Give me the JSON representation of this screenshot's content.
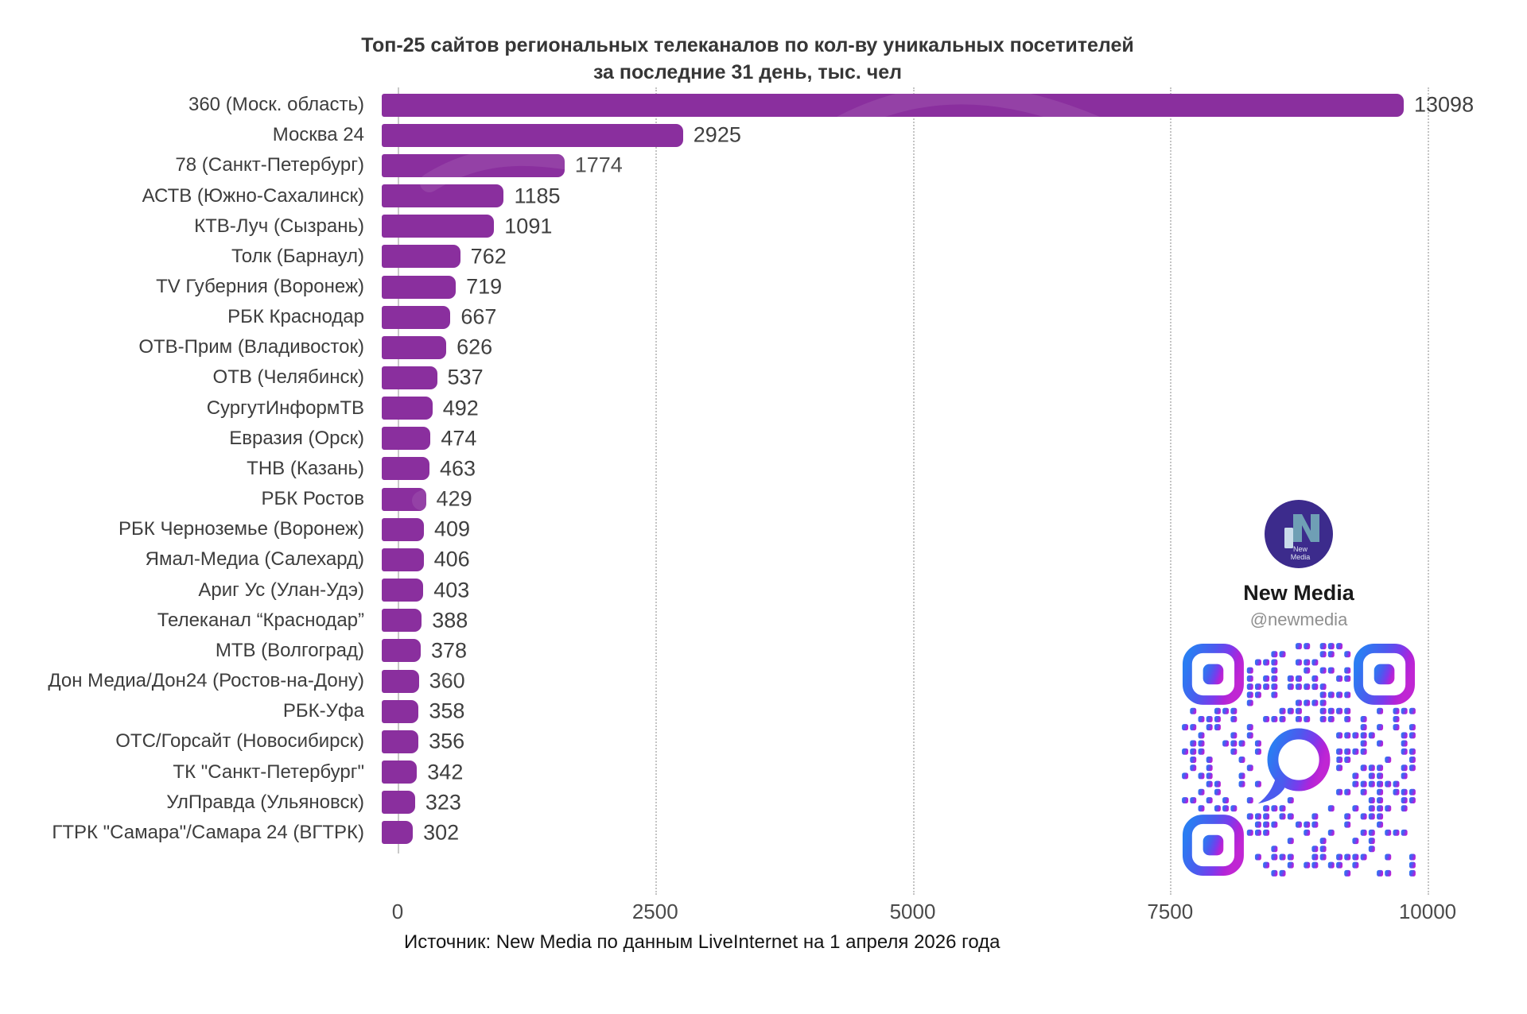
{
  "title": {
    "line1": "Топ-25 сайтов региональных телеканалов по кол-ву уникальных посетителей",
    "line2": "за последние 31 день, тыс. чел"
  },
  "chart_data": {
    "type": "bar",
    "orientation": "horizontal",
    "title": "Топ-25 сайтов региональных телеканалов по кол-ву уникальных посетителей за последние 31 день, тыс. чел",
    "categories": [
      "360 (Моск. область)",
      "Москва 24",
      "78 (Санкт-Петербург)",
      "АСТВ (Южно-Сахалинск)",
      "КТВ-Луч (Сызрань)",
      "Толк (Барнаул)",
      "TV Губерния (Воронеж)",
      "РБК Краснодар",
      "ОТВ-Прим (Владивосток)",
      "ОТВ (Челябинск)",
      "СургутИнформТВ",
      "Евразия (Орск)",
      "ТНВ (Казань)",
      "РБК Ростов",
      "РБК Черноземье (Воронеж)",
      "Ямал-Медиа (Салехард)",
      "Ариг Ус (Улан-Удэ)",
      "Телеканал “Краснодар”",
      "МТВ (Волгоград)",
      "Дон Медиа/Дон24 (Ростов-на-Дону)",
      "РБК-Уфа",
      "ОТС/Горсайт (Новосибирск)",
      "ТК \"Санкт-Петербург\"",
      "УлПравда (Ульяновск)",
      "ГТРК \"Самара\"/Самара 24 (ВГТРК)"
    ],
    "values": [
      13098,
      2925,
      1774,
      1185,
      1091,
      762,
      719,
      667,
      626,
      537,
      492,
      474,
      463,
      429,
      409,
      406,
      403,
      388,
      378,
      360,
      358,
      356,
      342,
      323,
      302
    ],
    "xlim": [
      0,
      10000
    ],
    "x_ticks": [
      0,
      2500,
      5000,
      7500,
      10000
    ],
    "grid": "dotted-vertical",
    "legend": "none",
    "bar_color": "#8a2f9e",
    "value_labels_shown": true,
    "first_bar_clipped_at_axis_max": true
  },
  "branding": {
    "logo_line1": "New",
    "logo_line2": "Media",
    "name": "New Media",
    "handle": "@newmedia"
  },
  "source": "Источник: New Media по данным LiveInternet на 1 апреля 2026 года",
  "colors": {
    "bar": "#8a2f9e",
    "qr_blue": "#2a7df2",
    "qr_violet": "#7a3bec",
    "qr_magenta": "#c026d3",
    "logo_bg": "#3c2b8c",
    "text": "#3d3d3d"
  }
}
